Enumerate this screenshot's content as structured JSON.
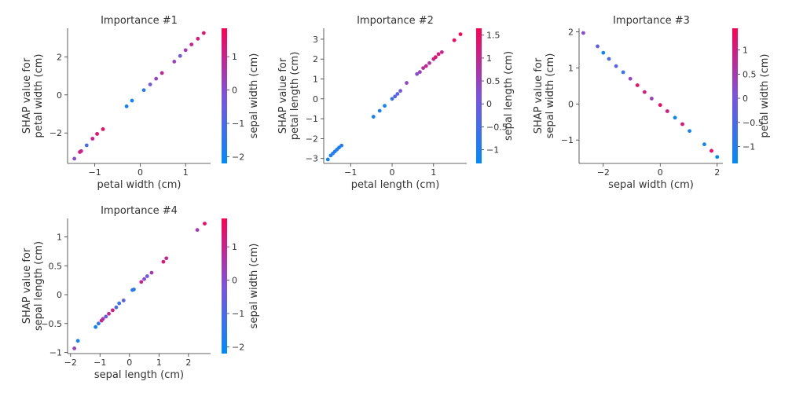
{
  "chart_data": [
    {
      "type": "scatter",
      "title": "Importance #1",
      "xlabel": "petal width (cm)",
      "ylabel": [
        "SHAP value for",
        "petal width (cm)"
      ],
      "xlim": [
        -1.6,
        1.55
      ],
      "ylim": [
        -3.6,
        3.5
      ],
      "xticks": [
        -1,
        0,
        1
      ],
      "yticks": [
        -2,
        0,
        2
      ],
      "colorbar": {
        "label": "sepal width (cm)",
        "range": [
          -2.2,
          1.85
        ],
        "ticks": [
          -2,
          -1,
          0,
          1
        ]
      },
      "points": [
        {
          "x": -1.45,
          "y": -3.35,
          "c": 0.0
        },
        {
          "x": -1.33,
          "y": -3.0,
          "c": 1.4
        },
        {
          "x": -1.3,
          "y": -2.95,
          "c": 1.0
        },
        {
          "x": -1.18,
          "y": -2.65,
          "c": -1.0
        },
        {
          "x": -1.05,
          "y": -2.3,
          "c": 1.1
        },
        {
          "x": -0.95,
          "y": -2.05,
          "c": 1.5
        },
        {
          "x": -0.82,
          "y": -1.8,
          "c": 1.6
        },
        {
          "x": -0.3,
          "y": -0.6,
          "c": -1.8
        },
        {
          "x": -0.18,
          "y": -0.3,
          "c": -2.0
        },
        {
          "x": 0.08,
          "y": 0.25,
          "c": -1.6
        },
        {
          "x": 0.22,
          "y": 0.55,
          "c": -0.3
        },
        {
          "x": 0.35,
          "y": 0.85,
          "c": 0.2
        },
        {
          "x": 0.48,
          "y": 1.15,
          "c": 0.9
        },
        {
          "x": 0.75,
          "y": 1.75,
          "c": 0.3
        },
        {
          "x": 0.88,
          "y": 2.05,
          "c": -0.4
        },
        {
          "x": 1.0,
          "y": 2.35,
          "c": 0.5
        },
        {
          "x": 1.13,
          "y": 2.65,
          "c": 1.0
        },
        {
          "x": 1.27,
          "y": 2.95,
          "c": 1.2
        },
        {
          "x": 1.4,
          "y": 3.25,
          "c": 1.4
        }
      ]
    },
    {
      "type": "scatter",
      "title": "Importance #2",
      "xlabel": "petal length (cm)",
      "ylabel": [
        "SHAP value for",
        "petal length (cm)"
      ],
      "xlim": [
        -1.65,
        1.8
      ],
      "ylim": [
        -3.25,
        3.55
      ],
      "xticks": [
        -1,
        0,
        1
      ],
      "yticks": [
        -3,
        -2,
        -1,
        0,
        1,
        2,
        3
      ],
      "colorbar": {
        "label": "sepal length (cm)",
        "range": [
          -1.3,
          1.65
        ],
        "ticks": [
          -1.0,
          -0.5,
          0.0,
          0.5,
          1.0,
          1.5
        ]
      },
      "points": [
        {
          "x": -1.55,
          "y": -3.05,
          "c": -1.2
        },
        {
          "x": -1.48,
          "y": -2.85,
          "c": -1.0
        },
        {
          "x": -1.43,
          "y": -2.75,
          "c": -0.9
        },
        {
          "x": -1.38,
          "y": -2.65,
          "c": -1.0
        },
        {
          "x": -1.33,
          "y": -2.55,
          "c": -0.8
        },
        {
          "x": -1.28,
          "y": -2.45,
          "c": -1.1
        },
        {
          "x": -1.22,
          "y": -2.35,
          "c": -0.9
        },
        {
          "x": -0.45,
          "y": -0.9,
          "c": -1.0
        },
        {
          "x": -0.3,
          "y": -0.6,
          "c": -0.9
        },
        {
          "x": -0.18,
          "y": -0.35,
          "c": -1.1
        },
        {
          "x": 0.0,
          "y": 0.0,
          "c": -0.7
        },
        {
          "x": 0.07,
          "y": 0.12,
          "c": -0.2
        },
        {
          "x": 0.13,
          "y": 0.25,
          "c": -0.3
        },
        {
          "x": 0.2,
          "y": 0.4,
          "c": 0.1
        },
        {
          "x": 0.35,
          "y": 0.8,
          "c": 0.4
        },
        {
          "x": 0.6,
          "y": 1.25,
          "c": 0.3
        },
        {
          "x": 0.67,
          "y": 1.35,
          "c": 0.5
        },
        {
          "x": 0.75,
          "y": 1.55,
          "c": 0.9
        },
        {
          "x": 0.82,
          "y": 1.65,
          "c": 1.0
        },
        {
          "x": 0.9,
          "y": 1.8,
          "c": 0.8
        },
        {
          "x": 1.0,
          "y": 2.0,
          "c": 1.1
        },
        {
          "x": 1.05,
          "y": 2.1,
          "c": 1.3
        },
        {
          "x": 1.12,
          "y": 2.25,
          "c": 1.2
        },
        {
          "x": 1.2,
          "y": 2.35,
          "c": 1.0
        },
        {
          "x": 1.5,
          "y": 2.95,
          "c": 1.5
        },
        {
          "x": 1.65,
          "y": 3.25,
          "c": 1.6
        }
      ]
    },
    {
      "type": "scatter",
      "title": "Importance #3",
      "xlabel": "sepal width (cm)",
      "ylabel": [
        "SHAP value for",
        "sepal width (cm)"
      ],
      "xlim": [
        -2.85,
        2.2
      ],
      "ylim": [
        -1.65,
        2.1
      ],
      "xticks": [
        -2,
        0,
        2
      ],
      "yticks": [
        -1,
        0,
        1,
        2
      ],
      "colorbar": {
        "label": "petal width (cm)",
        "range": [
          -1.35,
          1.45
        ],
        "ticks": [
          -1.0,
          -0.5,
          0.0,
          0.5,
          1.0
        ]
      },
      "points": [
        {
          "x": -2.7,
          "y": 1.97,
          "c": 0.2
        },
        {
          "x": -2.2,
          "y": 1.6,
          "c": -0.3
        },
        {
          "x": -2.0,
          "y": 1.42,
          "c": -1.2
        },
        {
          "x": -1.8,
          "y": 1.25,
          "c": -0.5
        },
        {
          "x": -1.55,
          "y": 1.05,
          "c": -0.4
        },
        {
          "x": -1.3,
          "y": 0.88,
          "c": -0.8
        },
        {
          "x": -1.05,
          "y": 0.7,
          "c": 0.3
        },
        {
          "x": -0.8,
          "y": 0.52,
          "c": 1.2
        },
        {
          "x": -0.55,
          "y": 0.33,
          "c": 1.0
        },
        {
          "x": -0.3,
          "y": 0.15,
          "c": 0.4
        },
        {
          "x": 0.0,
          "y": -0.03,
          "c": 1.3
        },
        {
          "x": 0.25,
          "y": -0.2,
          "c": 1.0
        },
        {
          "x": 0.52,
          "y": -0.38,
          "c": -1.2
        },
        {
          "x": 0.78,
          "y": -0.56,
          "c": 1.1
        },
        {
          "x": 1.03,
          "y": -0.75,
          "c": -1.1
        },
        {
          "x": 1.55,
          "y": -1.12,
          "c": -1.2
        },
        {
          "x": 1.8,
          "y": -1.3,
          "c": 1.3
        },
        {
          "x": 2.0,
          "y": -1.47,
          "c": -1.3
        }
      ]
    },
    {
      "type": "scatter",
      "title": "Importance #4",
      "xlabel": "sepal length (cm)",
      "ylabel": [
        "SHAP value for",
        "sepal length (cm)"
      ],
      "xlim": [
        -2.1,
        2.75
      ],
      "ylim": [
        -1.02,
        1.32
      ],
      "xticks": [
        -2,
        -1,
        0,
        1,
        2
      ],
      "yticks": [
        -1.0,
        -0.5,
        0.0,
        0.5,
        1.0
      ],
      "colorbar": {
        "label": "sepal width (cm)",
        "range": [
          -2.2,
          1.85
        ],
        "ticks": [
          -2,
          -1,
          0,
          1
        ]
      },
      "points": [
        {
          "x": -1.87,
          "y": -0.93,
          "c": 0.3
        },
        {
          "x": -1.75,
          "y": -0.8,
          "c": -1.8
        },
        {
          "x": -1.15,
          "y": -0.56,
          "c": -2.0
        },
        {
          "x": -1.05,
          "y": -0.5,
          "c": -1.5
        },
        {
          "x": -0.95,
          "y": -0.45,
          "c": 1.2
        },
        {
          "x": -0.9,
          "y": -0.42,
          "c": 0.6
        },
        {
          "x": -0.8,
          "y": -0.38,
          "c": -0.5
        },
        {
          "x": -0.7,
          "y": -0.33,
          "c": 1.0
        },
        {
          "x": -0.57,
          "y": -0.27,
          "c": 1.2
        },
        {
          "x": -0.45,
          "y": -0.22,
          "c": -1.0
        },
        {
          "x": -0.35,
          "y": -0.15,
          "c": -1.3
        },
        {
          "x": -0.2,
          "y": -0.1,
          "c": -0.8
        },
        {
          "x": 0.1,
          "y": 0.08,
          "c": -1.8
        },
        {
          "x": 0.15,
          "y": 0.09,
          "c": -1.4
        },
        {
          "x": 0.4,
          "y": 0.22,
          "c": 1.0
        },
        {
          "x": 0.5,
          "y": 0.27,
          "c": 0.0
        },
        {
          "x": 0.6,
          "y": 0.32,
          "c": -0.3
        },
        {
          "x": 0.75,
          "y": 0.38,
          "c": 0.5
        },
        {
          "x": 1.15,
          "y": 0.57,
          "c": 1.3
        },
        {
          "x": 1.25,
          "y": 0.63,
          "c": 0.9
        },
        {
          "x": 2.3,
          "y": 1.12,
          "c": 0.4
        },
        {
          "x": 2.55,
          "y": 1.23,
          "c": 1.6
        }
      ]
    }
  ]
}
